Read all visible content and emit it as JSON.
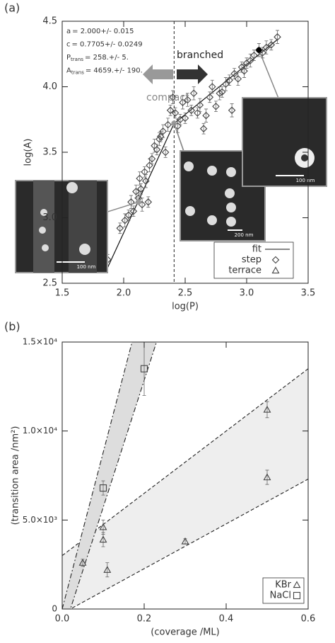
{
  "chart_data": [
    {
      "type": "scatter",
      "panel_label": "(a)",
      "xlabel": "log(P)",
      "ylabel": "log(A)",
      "xlim": [
        1.5,
        3.5
      ],
      "ylim": [
        2.5,
        4.5
      ],
      "xticks": [
        1.5,
        {
          "value": 2,
          "label": "2.0"
        },
        2.5,
        {
          "value": 3,
          "label": "3.0"
        },
        3.5
      ],
      "yticks": [
        2.5,
        {
          "value": 3,
          "label": "3.0"
        },
        3.5,
        {
          "value": 4,
          "label": "4.0"
        },
        4.5
      ],
      "vline": 2.41,
      "annotations": [
        {
          "symbol": "a",
          "text": "= 2.000+/- 0.015"
        },
        {
          "symbol": "c",
          "text": "= 0.7705+/- 0.0249"
        },
        {
          "symbol": "P",
          "subscript": "trans",
          "text": "= 258.+/- 5."
        },
        {
          "symbol": "A",
          "subscript": "trans",
          "text": "= 4659.+/- 190."
        }
      ],
      "arrow_labels": [
        "branched",
        "compact"
      ],
      "legend": "lower right",
      "series": [
        {
          "name": "fit",
          "marker": "line",
          "color": "#111111",
          "x": [
            1.85,
            2.41,
            3.25
          ],
          "values": [
            2.58,
            3.72,
            4.36
          ]
        },
        {
          "name": "step",
          "marker": "diamond",
          "color": "#444444",
          "x": [
            1.87,
            1.97,
            2.01,
            2.04,
            2.06,
            2.08,
            2.1,
            2.12,
            2.13,
            2.14,
            2.15,
            2.17,
            2.18,
            2.2,
            2.21,
            2.23,
            2.25,
            2.27,
            2.29,
            2.3,
            2.32,
            2.34,
            2.36,
            2.38,
            2.4,
            2.42,
            2.44,
            2.46,
            2.48,
            2.5,
            2.52,
            2.55,
            2.57,
            2.6,
            2.62,
            2.65,
            2.67,
            2.7,
            2.72,
            2.75,
            2.78,
            2.8,
            2.83,
            2.86,
            2.88,
            2.9,
            2.93,
            2.96,
            2.98,
            3.0,
            3.03,
            3.06,
            3.1,
            3.13,
            3.16,
            3.2,
            3.25
          ],
          "values": [
            2.68,
            2.92,
            2.98,
            3.02,
            3.12,
            3.05,
            3.2,
            3.15,
            3.3,
            3.22,
            3.1,
            3.35,
            3.28,
            3.12,
            3.4,
            3.45,
            3.55,
            3.52,
            3.6,
            3.62,
            3.66,
            3.5,
            3.71,
            3.82,
            3.92,
            3.8,
            3.7,
            3.75,
            3.88,
            3.76,
            3.9,
            3.82,
            3.95,
            3.8,
            3.86,
            3.68,
            3.78,
            3.92,
            4.0,
            3.85,
            3.95,
            3.96,
            4.02,
            4.05,
            3.82,
            4.1,
            4.06,
            4.15,
            4.12,
            4.18,
            4.2,
            4.24,
            4.28,
            4.26,
            4.3,
            4.32,
            4.38
          ],
          "errors": [
            0.04,
            0.04,
            0.05,
            0.04,
            0.05,
            0.04,
            0.05,
            0.04,
            0.05,
            0.04,
            0.05,
            0.04,
            0.05,
            0.04,
            0.05,
            0.04,
            0.05,
            0.04,
            0.05,
            0.04,
            0.05,
            0.04,
            0.05,
            0.04,
            0.05,
            0.04,
            0.05,
            0.04,
            0.05,
            0.04,
            0.05,
            0.04,
            0.05,
            0.04,
            0.05,
            0.04,
            0.05,
            0.04,
            0.05,
            0.04,
            0.05,
            0.04,
            0.05,
            0.04,
            0.05,
            0.04,
            0.05,
            0.04,
            0.05,
            0.04,
            0.05,
            0.04,
            0.05,
            0.04,
            0.05,
            0.04,
            0.05
          ]
        },
        {
          "name": "terrace",
          "marker": "triangle",
          "color": "#444444",
          "x": [],
          "values": [],
          "errors": []
        }
      ],
      "highlights": {
        "x": [
          2.12,
          2.41,
          3.1
        ],
        "values": [
          3.12,
          3.72,
          4.28
        ],
        "colors": [
          "#999999",
          "#999999",
          "#000000"
        ]
      },
      "insets": [
        {
          "scale_label": "100 nm"
        },
        {
          "scale_label": "200 nm"
        },
        {
          "scale_label": "100 nm"
        }
      ]
    },
    {
      "type": "scatter",
      "panel_label": "(b)",
      "xlabel": "(coverage /ML)",
      "ylabel": "(transition area /nm²)",
      "xlim": [
        0,
        0.6
      ],
      "ylim": [
        0,
        15000
      ],
      "xticks": [
        {
          "value": 0,
          "label": "0.0"
        },
        0.2,
        0.4,
        0.6
      ],
      "yticks": [
        0,
        {
          "value": 5000,
          "label": "5.0×10³"
        },
        {
          "value": 10000,
          "label": "1.0×10⁴"
        },
        {
          "value": 15000,
          "label": "1.5×10⁴"
        }
      ],
      "legend": "lower right",
      "bands": [
        {
          "x": [
            0,
            0.6
          ],
          "lower": [
            -252,
            7300
          ],
          "upper": [
            3000,
            13500
          ],
          "fill": "#eeeeee",
          "line_style": "dashed"
        },
        {
          "x": [
            0,
            0.25
          ],
          "lower": [
            -1430,
            16420
          ],
          "upper": [
            0,
            22000
          ],
          "fill": "#dddddd",
          "line_style": "dashdot"
        }
      ],
      "series": [
        {
          "name": "KBr",
          "marker": "triangle",
          "color": "#444444",
          "x": [
            0.05,
            0.1,
            0.1,
            0.11,
            0.3,
            0.5,
            0.5
          ],
          "values": [
            2600,
            4600,
            3900,
            2200,
            3800,
            11200,
            7400
          ],
          "errors": [
            200,
            400,
            400,
            400,
            150,
            450,
            400
          ]
        },
        {
          "name": "NaCl",
          "marker": "square",
          "color": "#444444",
          "x": [
            0.1,
            0.2
          ],
          "values": [
            6800,
            13500
          ],
          "errors": [
            400,
            1500
          ]
        }
      ]
    }
  ]
}
